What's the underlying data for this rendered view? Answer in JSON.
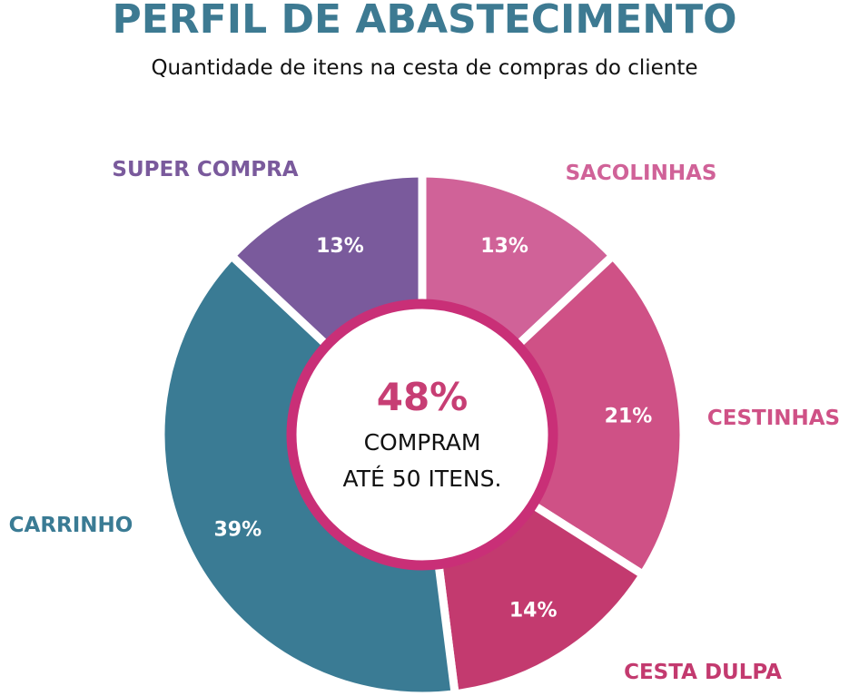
{
  "header": {
    "title": "PERFIL DE ABASTECIMENTO",
    "subtitle": "Quantidade de itens na cesta de compras do cliente"
  },
  "center": {
    "value": "48%",
    "line1": "COMPRAM",
    "line2": "ATÉ 50 ITENS.",
    "ring_color": "#c92f77",
    "value_color": "#c73e74"
  },
  "chart_data": {
    "type": "pie",
    "title": "PERFIL DE ABASTECIMENTO",
    "subtitle": "Quantidade de itens na cesta de compras do cliente",
    "series": [
      {
        "name": "SACOLINHAS",
        "value": 13,
        "label": "13%",
        "color": "#d06298"
      },
      {
        "name": "CESTINHAS",
        "value": 21,
        "label": "21%",
        "color": "#cf5186"
      },
      {
        "name": "CESTA DULPA",
        "value": 14,
        "label": "14%",
        "color": "#c33a6f"
      },
      {
        "name": "CARRINHO",
        "value": 39,
        "label": "39%",
        "color": "#3a7b94"
      },
      {
        "name": "SUPER COMPRA",
        "value": 13,
        "label": "13%",
        "color": "#7a5a9c"
      }
    ]
  }
}
